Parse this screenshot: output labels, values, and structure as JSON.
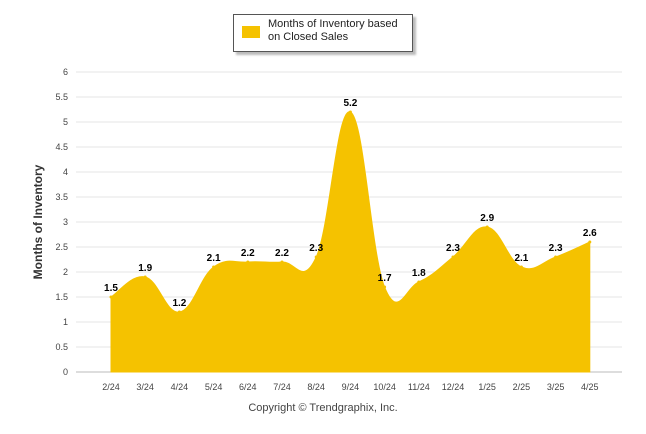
{
  "chart_data": {
    "type": "area",
    "categories": [
      "2/24",
      "3/24",
      "4/24",
      "5/24",
      "6/24",
      "7/24",
      "8/24",
      "9/24",
      "10/24",
      "11/24",
      "12/24",
      "1/25",
      "2/25",
      "3/25",
      "4/25"
    ],
    "series": [
      {
        "name": "Months of Inventory based on Closed Sales",
        "values": [
          1.5,
          1.9,
          1.2,
          2.1,
          2.2,
          2.2,
          2.3,
          5.2,
          1.7,
          1.8,
          2.3,
          2.9,
          2.1,
          2.3,
          2.6
        ]
      }
    ],
    "data_labels": [
      "1.5",
      "1.9",
      "1.2",
      "2.1",
      "2.2",
      "2.2",
      "2.3",
      "5.2",
      "1.7",
      "1.8",
      "2.3",
      "2.9",
      "2.1",
      "2.3",
      "2.6"
    ],
    "ylabel": "Months of Inventory",
    "xlabel": "",
    "ylim": [
      0,
      6
    ],
    "yticks": [
      "0",
      "0.5",
      "1",
      "1.5",
      "2",
      "2.5",
      "3",
      "3.5",
      "4",
      "4.5",
      "5",
      "5.5",
      "6"
    ],
    "grid": true,
    "legend_position": "top-center",
    "color": "#F5C200"
  },
  "legend": {
    "label": "Months of Inventory based on Closed Sales"
  },
  "footer": {
    "copyright": "Copyright © Trendgraphix, Inc."
  }
}
